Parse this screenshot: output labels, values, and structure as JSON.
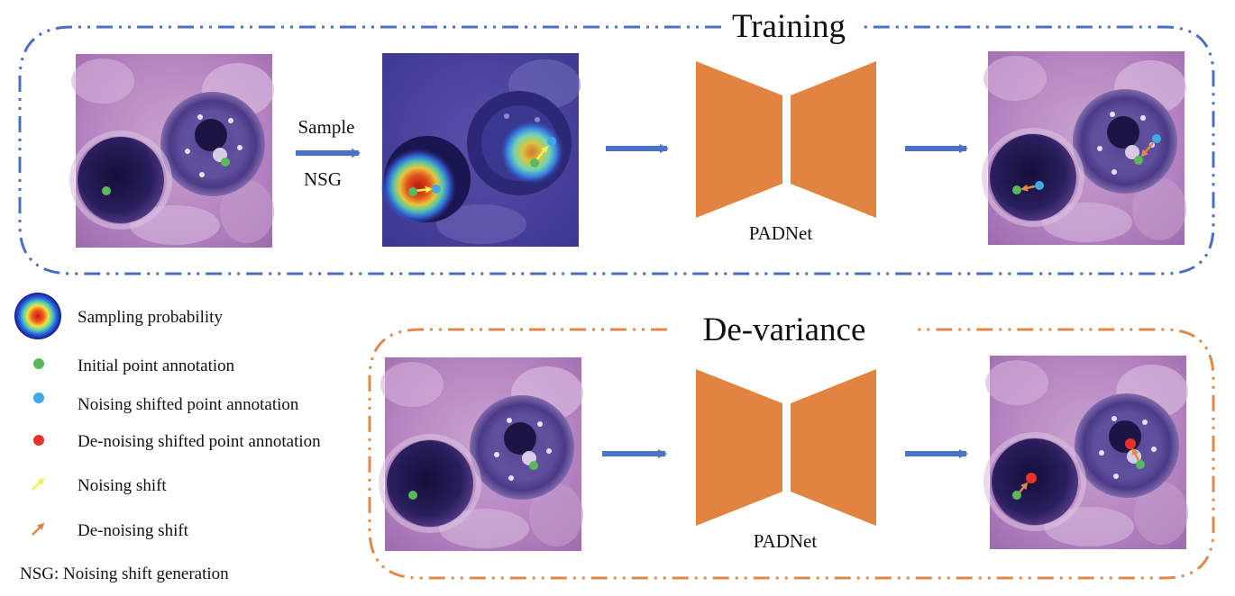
{
  "training": {
    "title": "Training",
    "sample_label": "Sample",
    "nsg_label": "NSG",
    "network_label": "PADNet"
  },
  "devariance": {
    "title": "De-variance",
    "network_label": "PADNet"
  },
  "legend": {
    "sampling_probability": "Sampling probability",
    "initial_point": "Initial point annotation",
    "noising_point": "Noising shifted point annotation",
    "denoising_point": "De-noising shifted point annotation",
    "noising_shift": "Noising  shift",
    "denoising_shift": "De-noising  shift",
    "nsg_definition": "NSG:  Noising shift generation"
  },
  "colors": {
    "training_frame": "#4a6fbf",
    "devariance_frame": "#dd8a4a",
    "network": "#e08440",
    "arrow": "#4a72c4",
    "initial_point": "#5cb85c",
    "noising_point": "#3fa9e8",
    "denoising_point": "#e8322a",
    "noising_shift": "#f2ee55",
    "denoising_shift": "#e0884a"
  }
}
